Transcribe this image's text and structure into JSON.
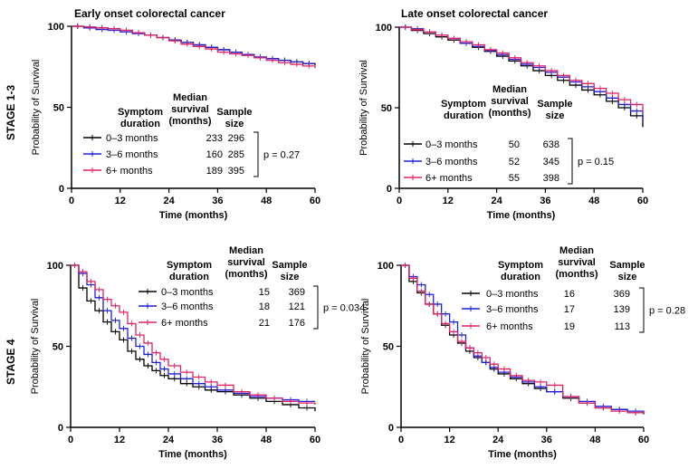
{
  "column_titles": [
    "Early onset colorectal cancer",
    "Late onset colorectal cancer"
  ],
  "row_labels": [
    "STAGE 1-3",
    "STAGE 4"
  ],
  "legend_headers": {
    "duration": [
      "Symptom",
      "duration"
    ],
    "median": [
      "Median",
      "survival",
      "(months)"
    ],
    "sample": [
      "Sample",
      "size"
    ]
  },
  "series_colors": {
    "0–3 months": "#000000",
    "3–6 months": "#1f1fd6",
    "6+ months": "#e0206a"
  },
  "chart_data": [
    {
      "type": "line",
      "panel": "top-left",
      "title": "Early onset colorectal cancer",
      "row": "STAGE 1-3",
      "xlabel": "Time (months)",
      "ylabel": "Probability of Survival",
      "xlim": [
        0,
        60
      ],
      "ylim": [
        0,
        100
      ],
      "xticks": [
        0,
        12,
        24,
        36,
        48,
        60
      ],
      "yticks": [
        0,
        50,
        100
      ],
      "p_value": "p = 0.27",
      "series": [
        {
          "name": "0–3 months",
          "median": "233",
          "n": "296",
          "x": [
            0,
            3,
            6,
            9,
            12,
            15,
            18,
            21,
            24,
            27,
            30,
            33,
            36,
            39,
            42,
            45,
            48,
            51,
            54,
            57,
            60
          ],
          "y": [
            100,
            99.5,
            99,
            98.5,
            97.5,
            96,
            94.5,
            93,
            91.5,
            90,
            88.5,
            87,
            85.5,
            84,
            82.5,
            81,
            80,
            79,
            78,
            77,
            76
          ]
        },
        {
          "name": "3–6 months",
          "median": "160",
          "n": "285",
          "x": [
            0,
            3,
            6,
            9,
            12,
            15,
            18,
            21,
            24,
            27,
            30,
            33,
            36,
            39,
            42,
            45,
            48,
            51,
            54,
            57,
            60
          ],
          "y": [
            100,
            99,
            98,
            97.5,
            96.5,
            95.5,
            94.5,
            93,
            91.5,
            90,
            88.5,
            87,
            85.5,
            84,
            82.5,
            81,
            80,
            79,
            78,
            77,
            76
          ]
        },
        {
          "name": "6+ months",
          "median": "189",
          "n": "395",
          "x": [
            0,
            3,
            6,
            9,
            12,
            15,
            18,
            21,
            24,
            27,
            30,
            33,
            36,
            39,
            42,
            45,
            48,
            51,
            54,
            57,
            60
          ],
          "y": [
            100,
            99.5,
            99,
            98.5,
            97.5,
            96,
            94.5,
            93,
            91,
            89,
            87.5,
            86,
            84,
            83,
            82,
            80.5,
            79,
            77.5,
            76.5,
            75.5,
            74
          ]
        }
      ]
    },
    {
      "type": "line",
      "panel": "top-right",
      "title": "Late onset colorectal cancer",
      "row": "STAGE 1-3",
      "xlabel": "Time (months)",
      "ylabel": "Probability of Survival",
      "xlim": [
        0,
        60
      ],
      "ylim": [
        0,
        100
      ],
      "xticks": [
        0,
        12,
        24,
        36,
        48,
        60
      ],
      "yticks": [
        0,
        50,
        100
      ],
      "p_value": "p = 0.15",
      "series": [
        {
          "name": "0–3 months",
          "median": "50",
          "n": "638",
          "x": [
            0,
            3,
            6,
            9,
            12,
            15,
            18,
            21,
            24,
            27,
            30,
            33,
            36,
            39,
            42,
            45,
            48,
            51,
            54,
            57,
            60
          ],
          "y": [
            100,
            98,
            96,
            94,
            92,
            90,
            87.5,
            85,
            82,
            79,
            76,
            73,
            70,
            67,
            64,
            61,
            58,
            54,
            50,
            45,
            38
          ]
        },
        {
          "name": "3–6 months",
          "median": "52",
          "n": "345",
          "x": [
            0,
            3,
            6,
            9,
            12,
            15,
            18,
            21,
            24,
            27,
            30,
            33,
            36,
            39,
            42,
            45,
            48,
            51,
            54,
            57,
            60
          ],
          "y": [
            100,
            99,
            97,
            95,
            93,
            90,
            88,
            85.5,
            83,
            80,
            77,
            75,
            72,
            69,
            66,
            63,
            60,
            56,
            52,
            48,
            42
          ]
        },
        {
          "name": "6+ months",
          "median": "55",
          "n": "398",
          "x": [
            0,
            3,
            6,
            9,
            12,
            15,
            18,
            21,
            24,
            27,
            30,
            33,
            36,
            39,
            42,
            45,
            48,
            51,
            54,
            57,
            60
          ],
          "y": [
            100,
            98.5,
            97,
            95,
            93,
            91,
            89,
            86,
            84,
            81,
            78,
            76,
            73,
            70,
            67,
            65,
            62,
            59,
            55,
            52,
            47
          ]
        }
      ]
    },
    {
      "type": "line",
      "panel": "bottom-left",
      "row": "STAGE 4",
      "xlabel": "Time (months)",
      "ylabel": "Probability of Survival",
      "xlim": [
        0,
        60
      ],
      "ylim": [
        0,
        100
      ],
      "xticks": [
        0,
        12,
        24,
        36,
        48,
        60
      ],
      "yticks": [
        0,
        50,
        100
      ],
      "p_value": "p = 0.034",
      "series": [
        {
          "name": "0–3 months",
          "median": "15",
          "n": "369",
          "x": [
            0,
            2,
            4,
            6,
            8,
            10,
            12,
            14,
            16,
            18,
            20,
            22,
            24,
            27,
            30,
            33,
            36,
            40,
            44,
            48,
            52,
            56,
            60
          ],
          "y": [
            100,
            86,
            78,
            72,
            65,
            59,
            54,
            47,
            42,
            38,
            35,
            32,
            30,
            27,
            25,
            23,
            22,
            20,
            18,
            16,
            14,
            12,
            10
          ]
        },
        {
          "name": "3–6 months",
          "median": "18",
          "n": "121",
          "x": [
            0,
            2,
            4,
            6,
            8,
            10,
            12,
            14,
            16,
            18,
            20,
            22,
            24,
            27,
            30,
            33,
            36,
            40,
            44,
            48,
            52,
            56,
            60
          ],
          "y": [
            100,
            95,
            88,
            80,
            72,
            66,
            61,
            55,
            50,
            45,
            40,
            36,
            33,
            30,
            27,
            25,
            23,
            21,
            19,
            18,
            17,
            16,
            16
          ]
        },
        {
          "name": "6+ months",
          "median": "21",
          "n": "176",
          "x": [
            0,
            2,
            4,
            6,
            8,
            10,
            12,
            14,
            16,
            18,
            20,
            22,
            24,
            27,
            30,
            33,
            36,
            40,
            44,
            48,
            52,
            56,
            60
          ],
          "y": [
            100,
            96,
            90,
            85,
            79,
            75,
            71,
            64,
            57,
            52,
            46,
            42,
            38,
            34,
            31,
            28,
            26,
            22,
            20,
            18,
            16,
            15,
            14
          ]
        }
      ]
    },
    {
      "type": "line",
      "panel": "bottom-right",
      "row": "STAGE 4",
      "xlabel": "Time (months)",
      "ylabel": "Probability of Survival",
      "xlim": [
        0,
        60
      ],
      "ylim": [
        0,
        100
      ],
      "xticks": [
        0,
        12,
        24,
        36,
        48,
        60
      ],
      "yticks": [
        0,
        50,
        100
      ],
      "p_value": "p = 0.28",
      "series": [
        {
          "name": "0–3 months",
          "median": "16",
          "n": "369",
          "x": [
            0,
            2,
            4,
            6,
            8,
            10,
            12,
            14,
            16,
            18,
            20,
            22,
            24,
            27,
            30,
            33,
            36,
            40,
            44,
            48,
            52,
            56,
            60
          ],
          "y": [
            100,
            90,
            83,
            76,
            70,
            63,
            57,
            52,
            47,
            43,
            40,
            36,
            33,
            30,
            27,
            24,
            22,
            18,
            15,
            12,
            11,
            9,
            8
          ]
        },
        {
          "name": "3–6 months",
          "median": "17",
          "n": "139",
          "x": [
            0,
            2,
            4,
            6,
            8,
            10,
            12,
            14,
            16,
            18,
            20,
            22,
            24,
            27,
            30,
            33,
            36,
            40,
            44,
            48,
            52,
            56,
            60
          ],
          "y": [
            100,
            93,
            88,
            82,
            76,
            70,
            65,
            57,
            49,
            44,
            40,
            37,
            34,
            31,
            28,
            25,
            22,
            19,
            16,
            13,
            11,
            10,
            9
          ]
        },
        {
          "name": "6+ months",
          "median": "19",
          "n": "113",
          "x": [
            0,
            2,
            4,
            6,
            8,
            10,
            12,
            14,
            16,
            18,
            20,
            22,
            24,
            27,
            30,
            33,
            36,
            40,
            44,
            48,
            52,
            56,
            60
          ],
          "y": [
            100,
            92,
            84,
            76,
            70,
            64,
            59,
            53,
            49,
            46,
            43,
            39,
            36,
            32,
            29,
            28,
            26,
            19,
            15,
            12,
            10,
            9,
            10
          ]
        }
      ]
    }
  ]
}
